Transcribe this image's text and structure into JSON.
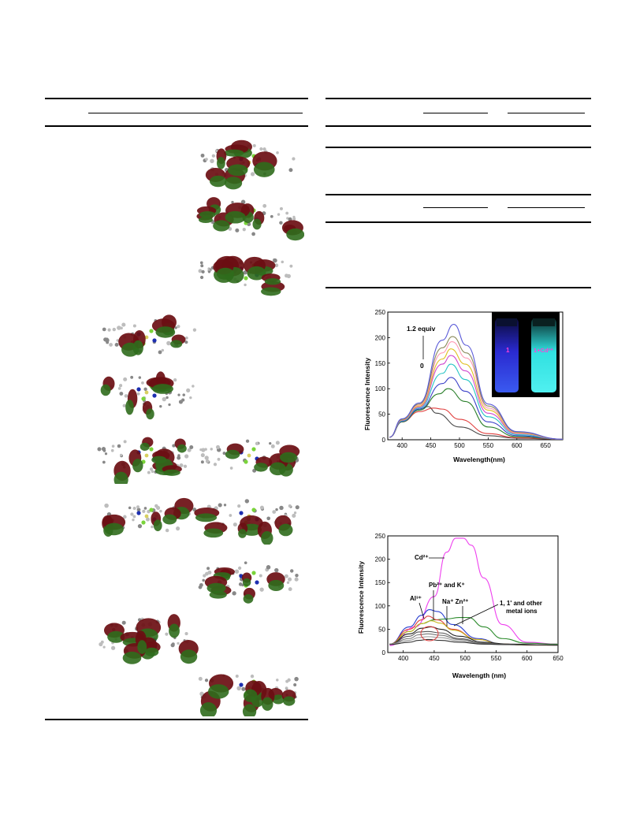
{
  "left_table": {
    "orbitals": [
      {
        "id": "r1c2",
        "col": 2,
        "row": 1
      },
      {
        "id": "r2c2",
        "col": 2,
        "row": 2
      },
      {
        "id": "r3c2",
        "col": 2,
        "row": 3
      },
      {
        "id": "r4c1",
        "col": 1,
        "row": 4
      },
      {
        "id": "r5c1",
        "col": 1,
        "row": 5
      },
      {
        "id": "r6c1",
        "col": 1,
        "row": 6
      },
      {
        "id": "r6c2",
        "col": 2,
        "row": 6
      },
      {
        "id": "r7c1",
        "col": 1,
        "row": 7
      },
      {
        "id": "r7c2",
        "col": 2,
        "row": 7
      },
      {
        "id": "r8c2",
        "col": 2,
        "row": 8
      },
      {
        "id": "r9c1",
        "col": 1,
        "row": 9
      },
      {
        "id": "r10c2",
        "col": 2,
        "row": 10
      }
    ]
  },
  "colors": {
    "lobe_dark": "#6b0e12",
    "lobe_green": "#2f6b1c",
    "atom_n": "#1d2fb0",
    "atom_halide": "#7ad43a",
    "atom_s": "#d8d060"
  },
  "chart_data": [
    {
      "type": "line",
      "ylabel": "Fluorescence Intensity",
      "xlabel": "Wavelength(nm)",
      "xlim": [
        375,
        680
      ],
      "ylim": [
        0,
        250
      ],
      "xticks": [
        400,
        450,
        500,
        550,
        600,
        650
      ],
      "yticks": [
        0,
        50,
        100,
        150,
        200,
        250
      ],
      "annotations": {
        "top": "1.2 equiv",
        "bottom": "0"
      },
      "inset": {
        "left_label": "1",
        "right_label": "1+Cd²⁺"
      },
      "series": [
        {
          "color": "#444444",
          "x": [
            378,
            400,
            430,
            445,
            460,
            500,
            550,
            600,
            680
          ],
          "y": [
            5,
            35,
            60,
            65,
            52,
            25,
            8,
            3,
            1
          ]
        },
        {
          "color": "#e0403f",
          "x": [
            378,
            400,
            430,
            455,
            470,
            500,
            550,
            600,
            680
          ],
          "y": [
            5,
            35,
            55,
            62,
            60,
            40,
            12,
            4,
            1
          ]
        },
        {
          "color": "#2a7f2a",
          "x": [
            378,
            400,
            430,
            465,
            480,
            510,
            550,
            600,
            680
          ],
          "y": [
            5,
            35,
            58,
            90,
            100,
            75,
            25,
            6,
            1
          ]
        },
        {
          "color": "#3a3fc8",
          "x": [
            378,
            400,
            430,
            470,
            485,
            510,
            550,
            600,
            680
          ],
          "y": [
            5,
            36,
            60,
            110,
            122,
            95,
            35,
            8,
            1
          ]
        },
        {
          "color": "#25c4c4",
          "x": [
            378,
            400,
            430,
            470,
            485,
            510,
            550,
            600,
            680
          ],
          "y": [
            5,
            37,
            62,
            130,
            148,
            118,
            45,
            10,
            1
          ]
        },
        {
          "color": "#d04ad0",
          "x": [
            378,
            400,
            430,
            470,
            485,
            510,
            550,
            600,
            680
          ],
          "y": [
            5,
            38,
            64,
            148,
            165,
            135,
            52,
            12,
            1
          ]
        },
        {
          "color": "#e0c020",
          "x": [
            378,
            400,
            430,
            470,
            485,
            510,
            550,
            600,
            680
          ],
          "y": [
            5,
            39,
            66,
            158,
            178,
            148,
            58,
            13,
            1
          ]
        },
        {
          "color": "#ff9ab5",
          "x": [
            378,
            400,
            430,
            470,
            487,
            512,
            550,
            600,
            680
          ],
          "y": [
            5,
            40,
            68,
            170,
            192,
            160,
            62,
            14,
            1
          ]
        },
        {
          "color": "#8a8a5a",
          "x": [
            378,
            400,
            430,
            470,
            488,
            512,
            550,
            600,
            680
          ],
          "y": [
            5,
            40,
            70,
            180,
            202,
            170,
            66,
            15,
            1
          ]
        },
        {
          "color": "#5a5ad8",
          "x": [
            378,
            400,
            430,
            470,
            490,
            512,
            550,
            600,
            680
          ],
          "y": [
            5,
            41,
            72,
            195,
            226,
            185,
            70,
            16,
            1
          ]
        }
      ]
    },
    {
      "type": "line",
      "ylabel": "Fluorescence Intensity",
      "xlabel": "Wavelength (nm)",
      "xlim": [
        375,
        650
      ],
      "ylim": [
        0,
        250
      ],
      "xticks": [
        400,
        450,
        500,
        550,
        600,
        650
      ],
      "yticks": [
        0,
        50,
        100,
        150,
        200,
        250
      ],
      "annotations": {
        "cd": "Cd²⁺",
        "al": "Al³⁺",
        "pbk": "Pb²⁺ and K⁺",
        "nazn": "Na⁺ Zn²⁺",
        "others_line1": "1, 1' and other",
        "others_line2": "metal ions"
      },
      "series": [
        {
          "color": "#ee3fee",
          "x": [
            378,
            420,
            450,
            470,
            485,
            497,
            510,
            530,
            560,
            600,
            650
          ],
          "y": [
            15,
            55,
            120,
            215,
            245,
            245,
            230,
            160,
            60,
            22,
            18
          ]
        },
        {
          "color": "#2a3fd0",
          "x": [
            378,
            410,
            430,
            442,
            455,
            480,
            520,
            560,
            600,
            650
          ],
          "y": [
            18,
            55,
            80,
            92,
            88,
            60,
            30,
            18,
            16,
            16
          ]
        },
        {
          "color": "#2a8a2a",
          "x": [
            378,
            410,
            430,
            450,
            470,
            490,
            505,
            530,
            560,
            600,
            650
          ],
          "y": [
            18,
            45,
            62,
            70,
            72,
            75,
            75,
            55,
            30,
            20,
            18
          ]
        },
        {
          "color": "#e0403f",
          "x": [
            378,
            410,
            430,
            440,
            455,
            480,
            520,
            560,
            600,
            650
          ],
          "y": [
            18,
            50,
            70,
            78,
            70,
            50,
            28,
            18,
            16,
            16
          ]
        },
        {
          "color": "#c8b820",
          "x": [
            378,
            410,
            430,
            445,
            460,
            480,
            520,
            560,
            600,
            650
          ],
          "y": [
            18,
            45,
            62,
            68,
            63,
            48,
            28,
            18,
            16,
            16
          ]
        },
        {
          "color": "#222222",
          "x": [
            378,
            410,
            430,
            445,
            460,
            490,
            530,
            570,
            650
          ],
          "y": [
            18,
            40,
            52,
            55,
            50,
            35,
            22,
            18,
            16
          ]
        },
        {
          "color": "#555555",
          "x": [
            378,
            410,
            425,
            440,
            460,
            490,
            530,
            570,
            650
          ],
          "y": [
            18,
            35,
            44,
            45,
            42,
            30,
            20,
            17,
            16
          ]
        },
        {
          "color": "#777777",
          "x": [
            378,
            410,
            425,
            440,
            460,
            490,
            530,
            570,
            650
          ],
          "y": [
            18,
            30,
            38,
            40,
            37,
            28,
            19,
            17,
            16
          ]
        },
        {
          "color": "#999999",
          "x": [
            378,
            410,
            425,
            440,
            460,
            490,
            530,
            570,
            650
          ],
          "y": [
            18,
            26,
            32,
            34,
            32,
            25,
            18,
            17,
            16
          ]
        },
        {
          "color": "#333333",
          "x": [
            378,
            410,
            425,
            440,
            460,
            490,
            530,
            570,
            650
          ],
          "y": [
            17,
            22,
            26,
            28,
            26,
            22,
            18,
            17,
            16
          ]
        }
      ]
    }
  ]
}
